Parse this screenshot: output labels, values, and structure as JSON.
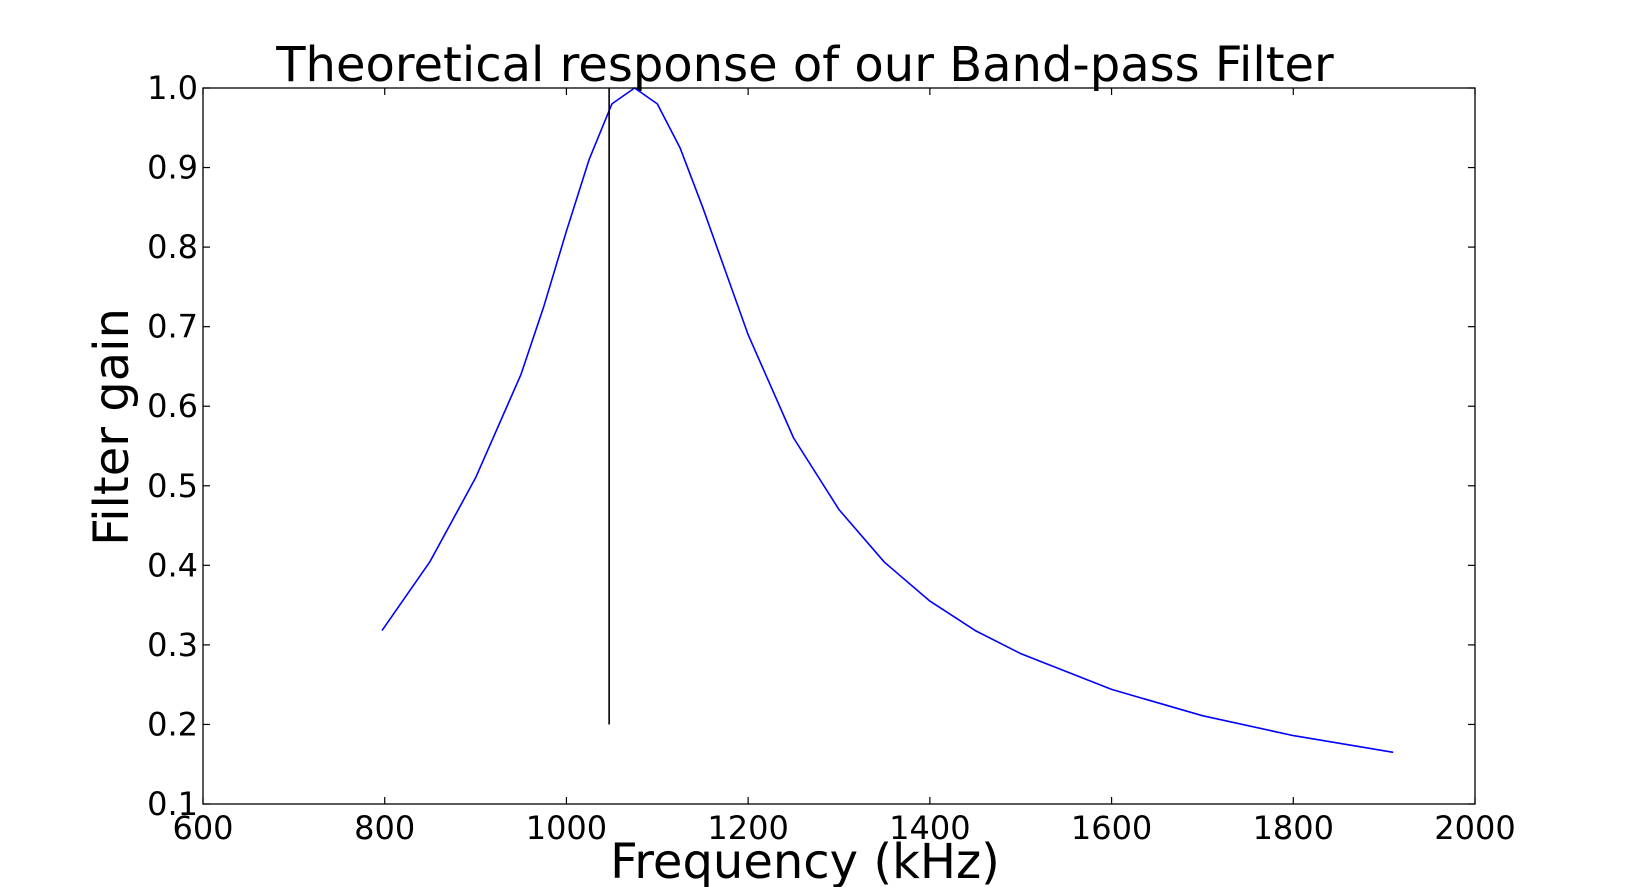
{
  "chart_data": {
    "type": "line",
    "title": "Theoretical response of our Band-pass Filter",
    "xlabel": "Frequency (kHz)",
    "ylabel": "Filter gain",
    "xlim": [
      600,
      2000
    ],
    "ylim": [
      0.1,
      1.0
    ],
    "xticks": [
      600,
      800,
      1000,
      1200,
      1400,
      1600,
      1800,
      2000
    ],
    "yticks": [
      0.1,
      0.2,
      0.3,
      0.4,
      0.5,
      0.6,
      0.7,
      0.8,
      0.9,
      1.0
    ],
    "xtick_labels": [
      "600",
      "800",
      "1000",
      "1200",
      "1400",
      "1600",
      "1800",
      "2000"
    ],
    "ytick_labels": [
      "0.1",
      "0.2",
      "0.3",
      "0.4",
      "0.5",
      "0.6",
      "0.7",
      "0.8",
      "0.9",
      "1.0"
    ],
    "grid": false,
    "series": [
      {
        "color": "#0000ff",
        "x": [
          797,
          850,
          900,
          950,
          975,
          1000,
          1025,
          1050,
          1075,
          1100,
          1125,
          1150,
          1175,
          1200,
          1250,
          1300,
          1350,
          1400,
          1450,
          1500,
          1600,
          1700,
          1800,
          1910
        ],
        "y": [
          0.318,
          0.405,
          0.51,
          0.64,
          0.725,
          0.82,
          0.91,
          0.98,
          1.0,
          0.98,
          0.925,
          0.85,
          0.77,
          0.69,
          0.56,
          0.47,
          0.404,
          0.355,
          0.318,
          0.289,
          0.244,
          0.211,
          0.186,
          0.165
        ]
      }
    ],
    "vlines": [
      {
        "x": 1047,
        "ymin": 0.2,
        "ymax": 1.0,
        "color": "#000000"
      }
    ]
  }
}
